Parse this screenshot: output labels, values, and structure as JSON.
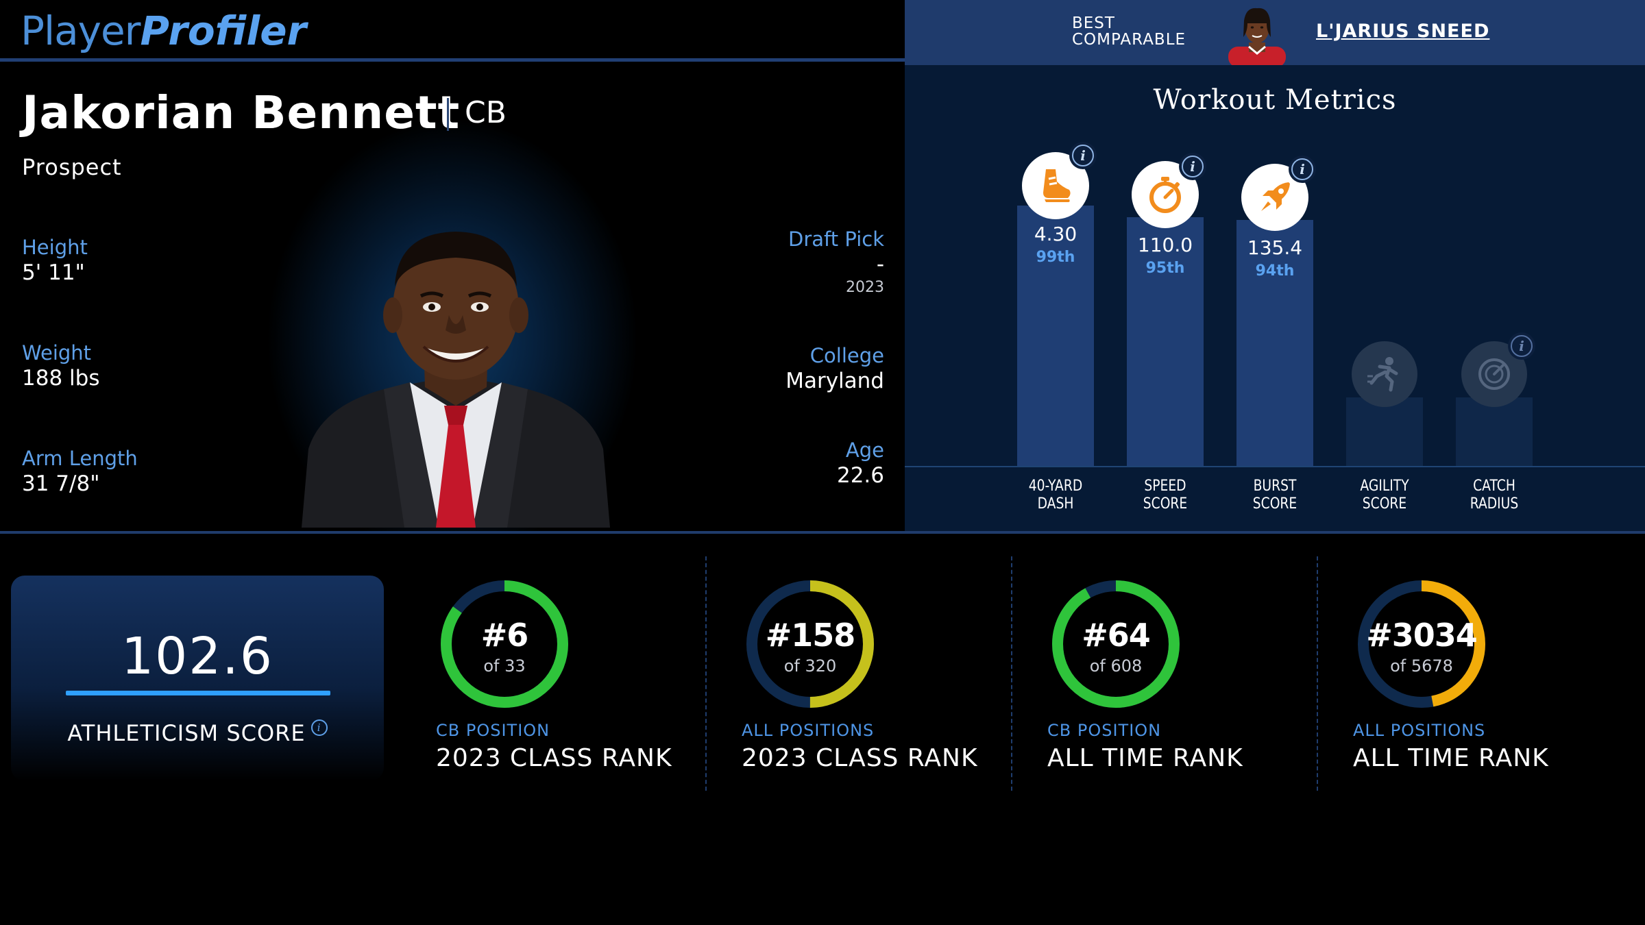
{
  "logo": {
    "part1": "Player",
    "part2": "Profiler"
  },
  "comparable": {
    "label_line1": "BEST",
    "label_line2": "COMPARABLE",
    "name": "L'JARIUS SNEED"
  },
  "player": {
    "name": "Jakorian Bennett",
    "position": "CB",
    "status": "Prospect",
    "height": {
      "label": "Height",
      "value": "5' 11\""
    },
    "weight": {
      "label": "Weight",
      "value": "188 lbs"
    },
    "arm_length": {
      "label": "Arm Length",
      "value": "31 7/8\""
    },
    "draft_pick": {
      "label": "Draft Pick",
      "value": "-",
      "year": "2023"
    },
    "college": {
      "label": "College",
      "value": "Maryland"
    },
    "age": {
      "label": "Age",
      "value": "22.6"
    }
  },
  "workout": {
    "title": "Workout Metrics",
    "info_glyph": "i",
    "metrics": [
      {
        "key": "forty",
        "line1": "40-YARD",
        "line2": "DASH",
        "value": "4.30",
        "percentile": "99th",
        "icon": "running-shoe-icon",
        "available": true
      },
      {
        "key": "speed",
        "line1": "SPEED",
        "line2": "SCORE",
        "value": "110.0",
        "percentile": "95th",
        "icon": "stopwatch-icon",
        "available": true
      },
      {
        "key": "burst",
        "line1": "BURST",
        "line2": "SCORE",
        "value": "135.4",
        "percentile": "94th",
        "icon": "rocket-icon",
        "available": true
      },
      {
        "key": "agility",
        "line1": "AGILITY",
        "line2": "SCORE",
        "value": "",
        "percentile": "",
        "icon": "sprinter-icon",
        "available": false
      },
      {
        "key": "catch",
        "line1": "CATCH",
        "line2": "RADIUS",
        "value": "",
        "percentile": "",
        "icon": "gauge-icon",
        "available": false
      }
    ]
  },
  "athleticism": {
    "score": "102.6",
    "label": "ATHLETICISM SCORE",
    "info_glyph": "i"
  },
  "ranks": [
    {
      "rank": "#6",
      "of": "of 33",
      "category": "CB POSITION",
      "title": "2023 CLASS RANK",
      "color": "#2fc43b",
      "fraction": 0.85
    },
    {
      "rank": "#158",
      "of": "of 320",
      "category": "ALL POSITIONS",
      "title": "2023 CLASS RANK",
      "color": "#c6c11c",
      "fraction": 0.5
    },
    {
      "rank": "#64",
      "of": "of 608",
      "category": "CB POSITION",
      "title": "ALL TIME RANK",
      "color": "#2fc43b",
      "fraction": 0.92
    },
    {
      "rank": "#3034",
      "of": "of 5678",
      "category": "ALL POSITIONS",
      "title": "ALL TIME RANK",
      "color": "#f2ac0a",
      "fraction": 0.47
    }
  ],
  "colors": {
    "accent_blue": "#5fa0e8",
    "header_blue": "#1f3b6c",
    "bar_blue": "#1f3e74",
    "ring_track": "#0f2a4d",
    "icon_orange": "#f28c1c"
  }
}
